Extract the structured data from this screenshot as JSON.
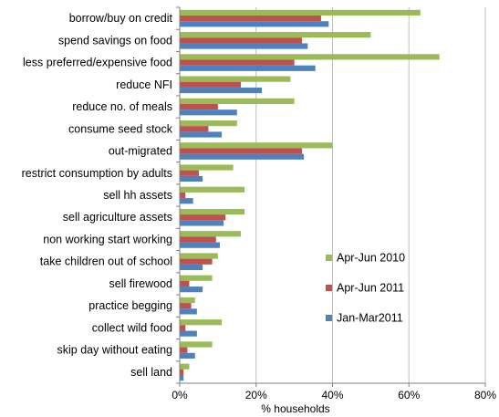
{
  "colors": {
    "series": [
      "#9BBB59",
      "#C0504D",
      "#4F81BD"
    ],
    "grid": "#BFBFBF",
    "axis": "#808080"
  },
  "chart_data": {
    "type": "bar",
    "orientation": "horizontal",
    "title": "",
    "xlabel": "% households",
    "ylabel": "",
    "xlim": [
      0,
      80
    ],
    "xticks": [
      "0%",
      "20%",
      "40%",
      "60%",
      "80%"
    ],
    "grid": true,
    "legend_position": "right",
    "categories": [
      "borrow/buy on credit",
      "spend savings on food",
      "less preferred/expensive food",
      "reduce NFI",
      "reduce no. of meals",
      "consume seed stock",
      "out-migrated",
      "restrict consumption by adults",
      "sell hh assets",
      "sell agriculture assets",
      "non working start working",
      "take children out of school",
      "sell firewood",
      "practice begging",
      "collect wild food",
      "skip day without eating",
      "sell land"
    ],
    "series": [
      {
        "name": "Apr-Jun 2010",
        "values": [
          63,
          50,
          68,
          29,
          30,
          15,
          40,
          14,
          17,
          17,
          16,
          10,
          8.5,
          4,
          11,
          8.5,
          2.5
        ]
      },
      {
        "name": "Apr-Jun 2011",
        "values": [
          37,
          32,
          30,
          16,
          10,
          7.5,
          32,
          5,
          1.5,
          12,
          9.5,
          8.5,
          2.5,
          3,
          1.5,
          2,
          1
        ]
      },
      {
        "name": "Jan-Mar2011",
        "values": [
          39,
          33.5,
          35.5,
          21.5,
          15,
          11,
          32.5,
          6,
          3.5,
          11.5,
          10.5,
          6,
          6,
          4.5,
          4.5,
          4,
          1
        ]
      }
    ]
  }
}
